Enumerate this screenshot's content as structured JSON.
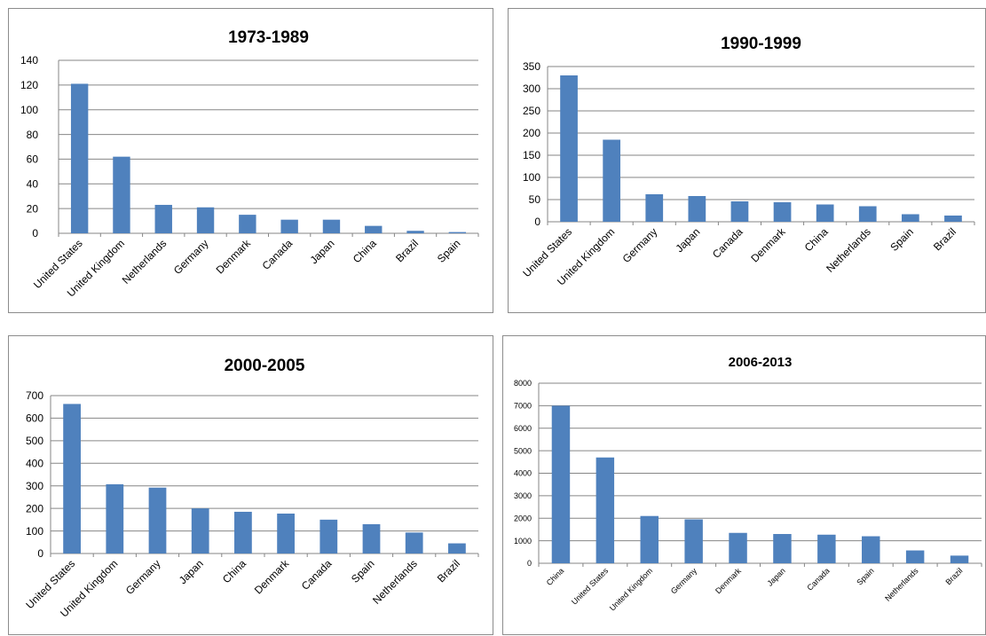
{
  "colors": {
    "bar": "#4f81bd",
    "grid": "#868686",
    "border": "#8c8c8c"
  },
  "chart_data": [
    {
      "type": "bar",
      "title": "1973-1989",
      "categories": [
        "United States",
        "United Kingdom",
        "Netherlands",
        "Germany",
        "Denmark",
        "Canada",
        "Japan",
        "China",
        "Brazil",
        "Spain"
      ],
      "values": [
        121,
        62,
        23,
        21,
        15,
        11,
        11,
        6,
        2,
        1
      ],
      "yticks": [
        "0",
        "20",
        "40",
        "60",
        "80",
        "100",
        "120",
        "140"
      ],
      "ylim": [
        0,
        140
      ],
      "grid": true,
      "legend": "none"
    },
    {
      "type": "bar",
      "title": "1990-1999",
      "categories": [
        "United States",
        "United Kingdom",
        "Germany",
        "Japan",
        "Canada",
        "Denmark",
        "China",
        "Netherlands",
        "Spain",
        "Brazil"
      ],
      "values": [
        330,
        185,
        62,
        58,
        46,
        44,
        39,
        35,
        17,
        14
      ],
      "yticks": [
        "0",
        "50",
        "100",
        "150",
        "200",
        "250",
        "300",
        "350"
      ],
      "ylim": [
        0,
        350
      ],
      "grid": true,
      "legend": "none"
    },
    {
      "type": "bar",
      "title": "2000-2005",
      "categories": [
        "United States",
        "United Kingdom",
        "Germany",
        "Japan",
        "China",
        "Denmark",
        "Canada",
        "Spain",
        "Netherlands",
        "Brazil"
      ],
      "values": [
        663,
        307,
        292,
        200,
        185,
        177,
        150,
        130,
        93,
        45
      ],
      "yticks": [
        "0",
        "100",
        "200",
        "300",
        "400",
        "500",
        "600",
        "700"
      ],
      "ylim": [
        0,
        700
      ],
      "grid": true,
      "legend": "none"
    },
    {
      "type": "bar",
      "title": "2006-2013",
      "categories": [
        "China",
        "United States",
        "United Kingdom",
        "Germany",
        "Denmark",
        "Japan",
        "Canada",
        "Spain",
        "Netherlands",
        "Brazil"
      ],
      "values": [
        7000,
        4700,
        2100,
        1950,
        1350,
        1300,
        1270,
        1200,
        570,
        340
      ],
      "yticks": [
        "0",
        "1000",
        "2000",
        "3000",
        "4000",
        "5000",
        "6000",
        "7000",
        "8000"
      ],
      "ylim": [
        0,
        8000
      ],
      "grid": true,
      "legend": "none"
    }
  ]
}
